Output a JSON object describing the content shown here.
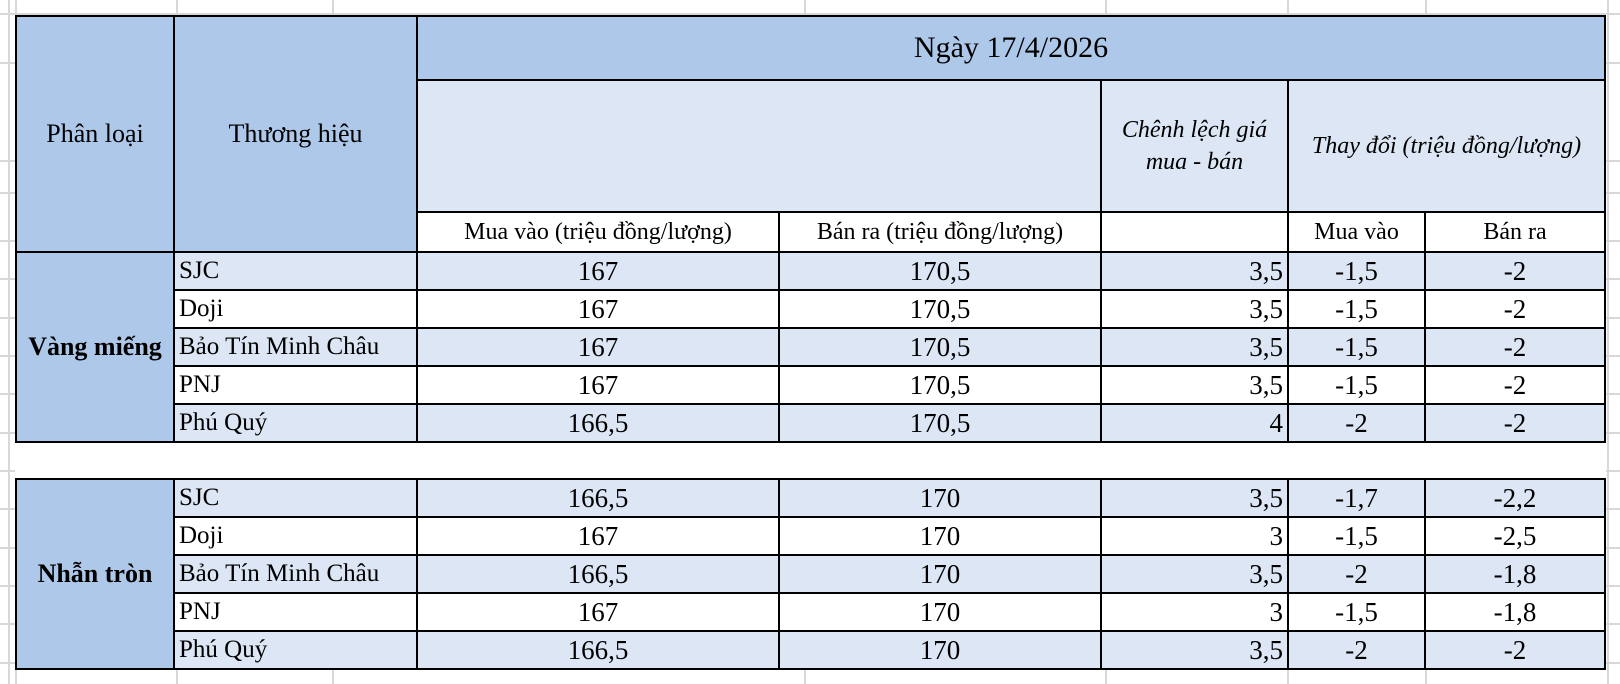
{
  "colors": {
    "header_blue": "#AEC8E9",
    "row_blue": "#DCE6F4",
    "border_black": "#000000",
    "gridline_gray": "#D8D8D8"
  },
  "chart_data": {
    "type": "table",
    "title": "Ngày 17/4/2026",
    "headers": {
      "category": "Phân loại",
      "brand": "Thương hiệu",
      "buy_full": "Mua vào (triệu đồng/lượng)",
      "sell_full": "Bán ra (triệu đồng/lượng)",
      "spread": "Chênh lệch giá mua - bán",
      "change_group": "Thay đổi (triệu đồng/lượng)",
      "change_buy": "Mua vào",
      "change_sell": "Bán ra"
    },
    "sections": [
      {
        "category": "Vàng miếng",
        "rows": [
          {
            "brand": "SJC",
            "buy": "167",
            "sell": "170,5",
            "spread": "3,5",
            "change_buy": "-1,5",
            "change_sell": "-2"
          },
          {
            "brand": "Doji",
            "buy": "167",
            "sell": "170,5",
            "spread": "3,5",
            "change_buy": "-1,5",
            "change_sell": "-2"
          },
          {
            "brand": "Bảo Tín Minh Châu",
            "buy": "167",
            "sell": "170,5",
            "spread": "3,5",
            "change_buy": "-1,5",
            "change_sell": "-2"
          },
          {
            "brand": "PNJ",
            "buy": "167",
            "sell": "170,5",
            "spread": "3,5",
            "change_buy": "-1,5",
            "change_sell": "-2"
          },
          {
            "brand": "Phú Quý",
            "buy": "166,5",
            "sell": "170,5",
            "spread": "4",
            "change_buy": "-2",
            "change_sell": "-2"
          }
        ]
      },
      {
        "category": "Nhẫn tròn",
        "rows": [
          {
            "brand": "SJC",
            "buy": "166,5",
            "sell": "170",
            "spread": "3,5",
            "change_buy": "-1,7",
            "change_sell": "-2,2"
          },
          {
            "brand": "Doji",
            "buy": "167",
            "sell": "170",
            "spread": "3",
            "change_buy": "-1,5",
            "change_sell": "-2,5"
          },
          {
            "brand": "Bảo Tín Minh Châu",
            "buy": "166,5",
            "sell": "170",
            "spread": "3,5",
            "change_buy": "-2",
            "change_sell": "-1,8"
          },
          {
            "brand": "PNJ",
            "buy": "167",
            "sell": "170",
            "spread": "3",
            "change_buy": "-1,5",
            "change_sell": "-1,8"
          },
          {
            "brand": "Phú Quý",
            "buy": "166,5",
            "sell": "170",
            "spread": "3,5",
            "change_buy": "-2",
            "change_sell": "-2"
          }
        ]
      }
    ]
  }
}
